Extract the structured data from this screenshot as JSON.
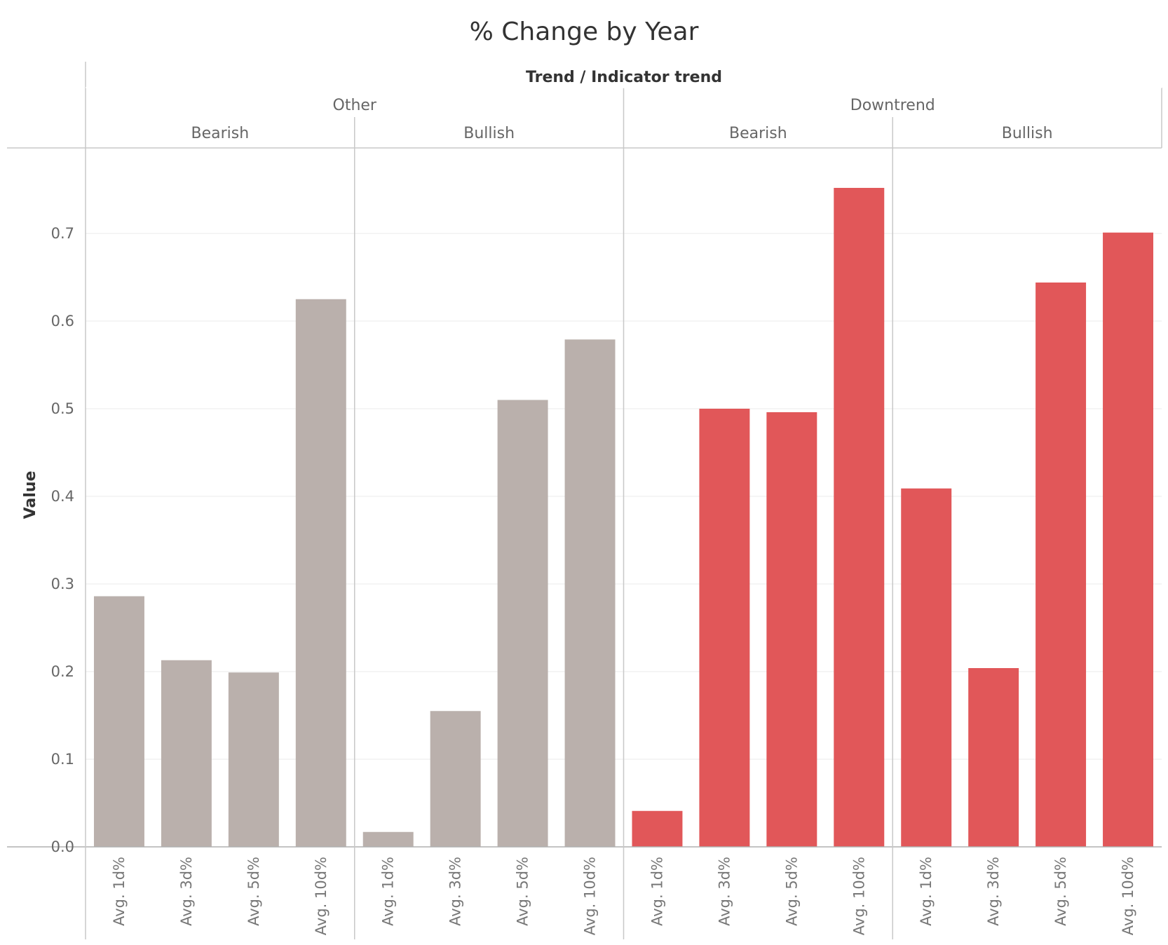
{
  "chart_data": {
    "type": "bar",
    "title": "% Change by Year",
    "header_title": "Trend / Indicator trend",
    "ylabel": "Value",
    "ylim": [
      0,
      0.8
    ],
    "yticks": [
      "0.0",
      "0.1",
      "0.2",
      "0.3",
      "0.4",
      "0.5",
      "0.6",
      "0.7"
    ],
    "grid": true,
    "colors": {
      "Other": "#bab0ac",
      "Downtrend": "#e15759"
    },
    "categories": [
      "Avg. 1d%",
      "Avg. 3d%",
      "Avg. 5d%",
      "Avg. 10d%"
    ],
    "groups": [
      {
        "trend": "Other",
        "panels": [
          {
            "indicator": "Bearish",
            "values": [
              0.286,
              0.213,
              0.199,
              0.625
            ]
          },
          {
            "indicator": "Bullish",
            "values": [
              0.017,
              0.155,
              0.51,
              0.579
            ]
          }
        ]
      },
      {
        "trend": "Downtrend",
        "panels": [
          {
            "indicator": "Bearish",
            "values": [
              0.041,
              0.5,
              0.496,
              0.752
            ]
          },
          {
            "indicator": "Bullish",
            "values": [
              0.409,
              0.204,
              0.644,
              0.701
            ]
          }
        ]
      }
    ]
  }
}
